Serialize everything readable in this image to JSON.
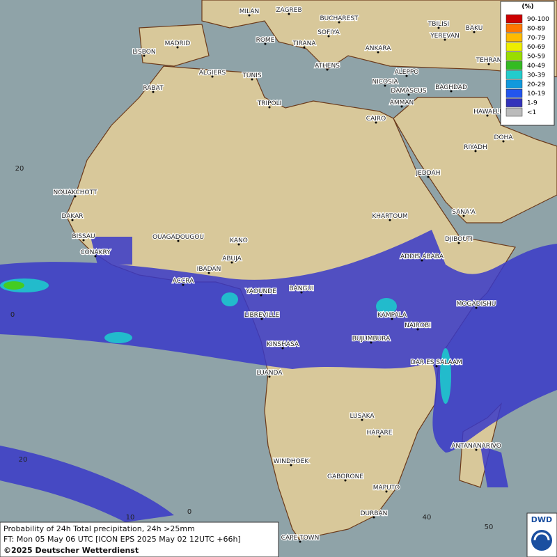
{
  "cities": [
    "MILAN",
    "ZAGREB",
    "BUCHAREST",
    "SOFIYA",
    "ROME",
    "TIRANA",
    "ANKARA",
    "TBILISI",
    "BAKU",
    "YEREVAN",
    "TEHRAN",
    "MADRID",
    "LISBON",
    "ALGIERS",
    "TUNIS",
    "ATHENS",
    "ALEPPO",
    "NICOSIA",
    "BAGHDAD",
    "RABAT",
    "DAMASCUS",
    "AMMAN",
    "TRIPOLI",
    "HAWALLI",
    "CAIRO",
    "DOHA",
    "RIYADH",
    "NOUAKCHOTT",
    "JEDDAH",
    "DAKAR",
    "SANA'A",
    "KHARTOUM",
    "BISSAU",
    "OUAGADOUGOU",
    "KANO",
    "DJIBOUTI",
    "CONAKRY",
    "ABUJA",
    "ADDIS ABABA",
    "IBADAN",
    "ACCRA",
    "YAOUNDE",
    "BANGUI",
    "MOGADISHU",
    "LIBREVILLE",
    "KAMPALA",
    "NAIROBI",
    "BUJUMBURA",
    "KINSHASA",
    "DAR ES SALAAM",
    "LUANDA",
    "LUSAKA",
    "HARARE",
    "ANTANANARIVO",
    "WINDHOEK",
    "GABORONE",
    "MAPUTO",
    "DURBAN",
    "CAPE TOWN"
  ],
  "grid_labels": [
    "20",
    "0",
    "20",
    "10",
    "0",
    "40",
    "50"
  ],
  "legend": {
    "title": "(%)",
    "items": [
      {
        "label": "90-100",
        "color": "#cc0000"
      },
      {
        "label": "80-89",
        "color": "#ff7700"
      },
      {
        "label": "70-79",
        "color": "#ffbb00"
      },
      {
        "label": "60-69",
        "color": "#eeee00"
      },
      {
        "label": "50-59",
        "color": "#99dd00"
      },
      {
        "label": "40-49",
        "color": "#33bb22"
      },
      {
        "label": "30-39",
        "color": "#22cccc"
      },
      {
        "label": "20-29",
        "color": "#1199dd"
      },
      {
        "label": "10-19",
        "color": "#2255ee"
      },
      {
        "label": "1-9",
        "color": "#3333bb"
      },
      {
        "label": "<1",
        "color": "#bbbbbb"
      }
    ]
  },
  "footer": {
    "lines": [
      "Probability of 24h Total precipitation, 24h >25mm",
      "FT: Mon 05 May 06 UTC [ICON EPS 2025 May 02 12UTC +66h]",
      "©2025 Deutscher Wetterdienst"
    ]
  },
  "logo": "DWD"
}
